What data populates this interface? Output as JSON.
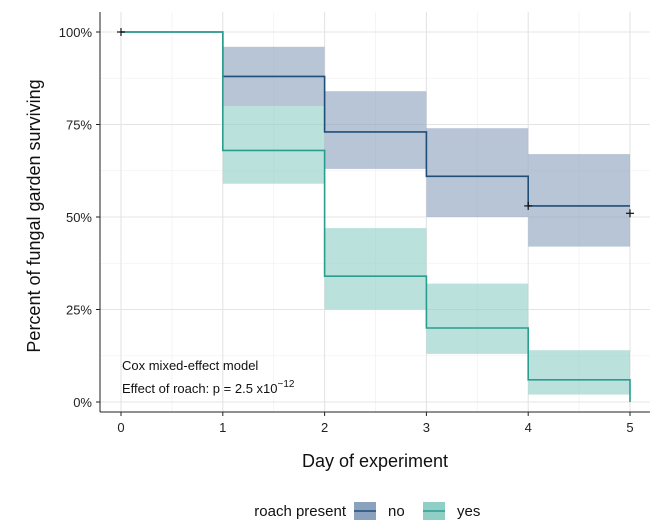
{
  "chart_data": {
    "type": "line",
    "xlabel": "Day of experiment",
    "ylabel": "Percent of fungal garden surviving",
    "xlim": [
      0,
      5
    ],
    "ylim": [
      0,
      100
    ],
    "x_ticks": [
      "0",
      "1",
      "2",
      "3",
      "4",
      "5"
    ],
    "y_ticks": [
      "0%",
      "25%",
      "50%",
      "75%",
      "100%"
    ],
    "grid": true,
    "legend": {
      "title": "roach present",
      "placement": "bottom",
      "entries": [
        "no",
        "yes"
      ]
    },
    "annotation": {
      "line1": "Cox mixed-effect model",
      "line2_prefix": "Effect of roach: p = 2.5 x10",
      "line2_exponent": "−12"
    },
    "series": [
      {
        "name": "no",
        "color": "#1f4e79",
        "fill_color": "#8aa2bd",
        "steps": [
          {
            "x0": 0,
            "x1": 1,
            "y": 100,
            "lo": 100,
            "hi": 100
          },
          {
            "x0": 1,
            "x1": 2,
            "y": 88,
            "lo": 80,
            "hi": 96
          },
          {
            "x0": 2,
            "x1": 3,
            "y": 73,
            "lo": 63,
            "hi": 84
          },
          {
            "x0": 3,
            "x1": 4,
            "y": 61,
            "lo": 50,
            "hi": 74
          },
          {
            "x0": 4,
            "x1": 5,
            "y": 53,
            "lo": 42,
            "hi": 67
          }
        ],
        "censor_marks": [
          {
            "x": 0,
            "y": 100
          },
          {
            "x": 4,
            "y": 53
          },
          {
            "x": 5,
            "y": 51
          }
        ]
      },
      {
        "name": "yes",
        "color": "#2a9d8f",
        "fill_color": "#8fcfc5",
        "steps": [
          {
            "x0": 0,
            "x1": 1,
            "y": 100,
            "lo": 100,
            "hi": 100
          },
          {
            "x0": 1,
            "x1": 2,
            "y": 68,
            "lo": 59,
            "hi": 80
          },
          {
            "x0": 2,
            "x1": 3,
            "y": 34,
            "lo": 25,
            "hi": 47
          },
          {
            "x0": 3,
            "x1": 4,
            "y": 20,
            "lo": 13,
            "hi": 32
          },
          {
            "x0": 4,
            "x1": 5,
            "y": 6,
            "lo": 2,
            "hi": 14
          }
        ],
        "end_drop": 0,
        "censor_marks": []
      }
    ]
  }
}
